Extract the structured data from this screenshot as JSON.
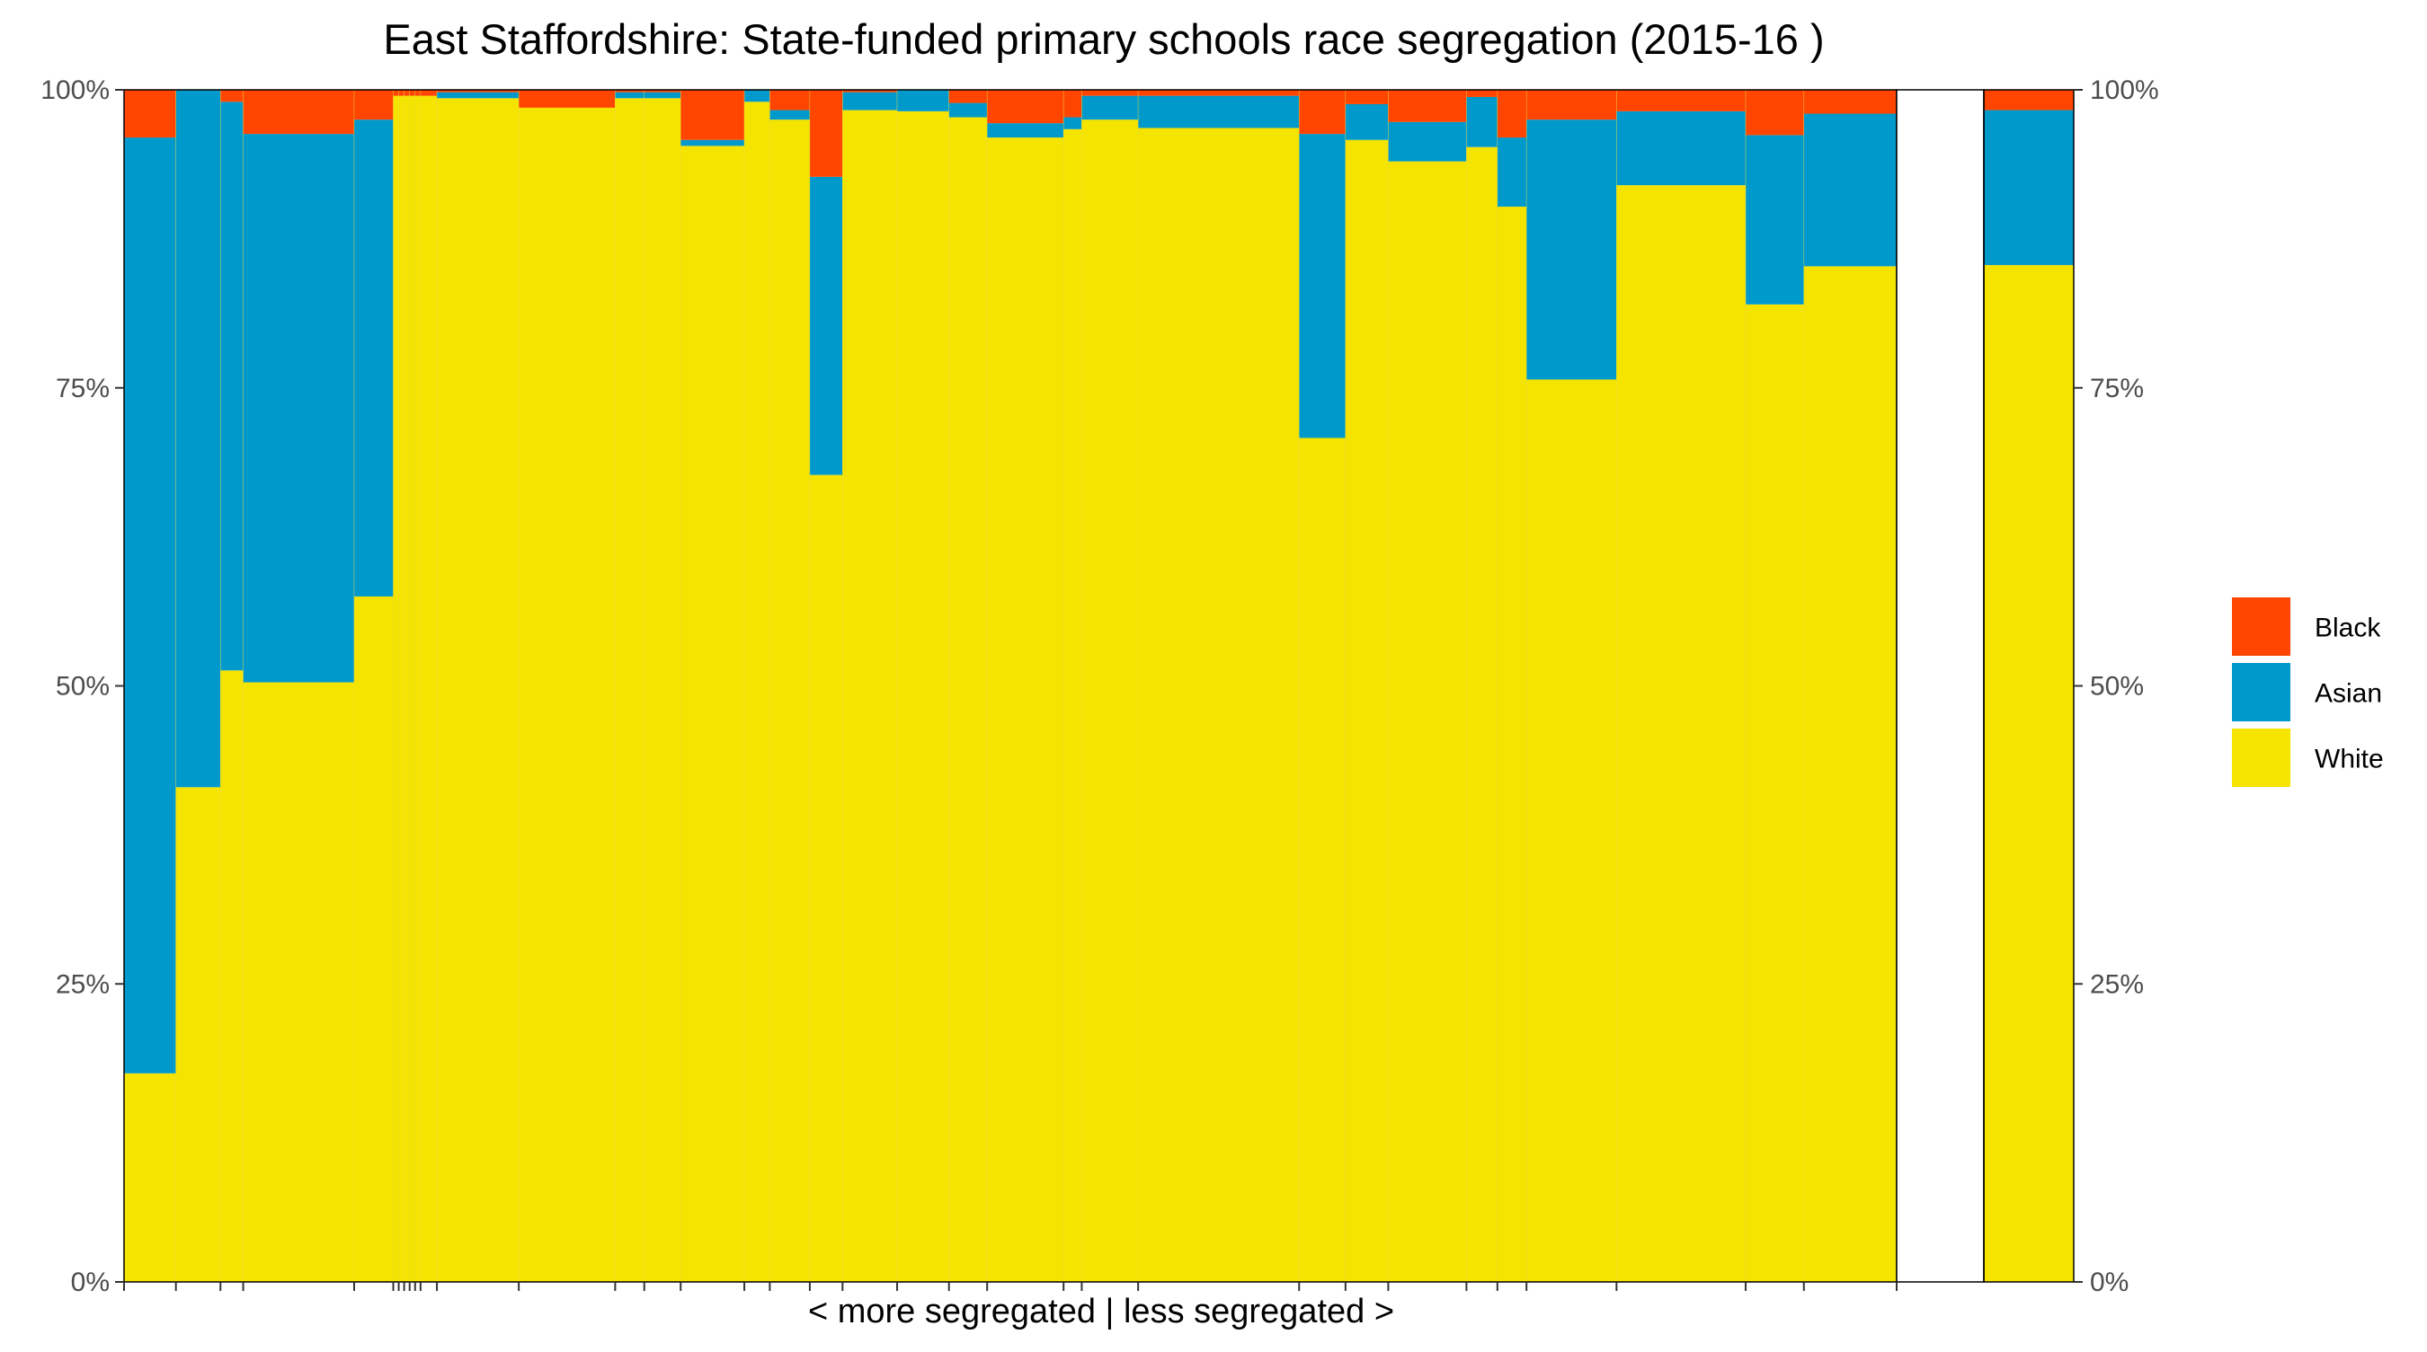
{
  "chart_data": {
    "type": "bar",
    "subtype": "stacked-100-variable-width",
    "title": "East Staffordshire: State-funded primary schools race segregation (2015-16 )",
    "xlabel": "< more segregated | less segregated >",
    "ylabel": "",
    "ylim": [
      0,
      1
    ],
    "y_ticks": [
      "0%",
      "25%",
      "50%",
      "75%",
      "100%"
    ],
    "y_axis_secondary": true,
    "legend_position": "right",
    "series_order_top_to_bottom": [
      "Black",
      "Asian",
      "White"
    ],
    "colors": {
      "White": "#f5e300",
      "Asian": "#0099cc",
      "Black": "#ff4500"
    },
    "legend": [
      {
        "name": "Black",
        "color": "#ff4500"
      },
      {
        "name": "Asian",
        "color": "#0099cc"
      },
      {
        "name": "White",
        "color": "#f5e300"
      }
    ],
    "schools": [
      {
        "width": 57,
        "white": 0.175,
        "asian": 0.785,
        "black": 0.04
      },
      {
        "width": 49,
        "white": 0.415,
        "asian": 0.585,
        "black": 0.0
      },
      {
        "width": 25,
        "white": 0.513,
        "asian": 0.477,
        "black": 0.01
      },
      {
        "width": 122,
        "white": 0.503,
        "asian": 0.46,
        "black": 0.037
      },
      {
        "width": 43,
        "white": 0.575,
        "asian": 0.4,
        "black": 0.025
      },
      {
        "width": 6,
        "white": 0.995,
        "asian": 0.0,
        "black": 0.0
      },
      {
        "width": 6,
        "white": 0.995,
        "asian": 0.0,
        "black": 0.0
      },
      {
        "width": 6,
        "white": 0.995,
        "asian": 0.0,
        "black": 0.0
      },
      {
        "width": 6,
        "white": 0.995,
        "asian": 0.0,
        "black": 0.0
      },
      {
        "width": 6,
        "white": 0.995,
        "asian": 0.0,
        "black": 0.0
      },
      {
        "width": 18,
        "white": 0.995,
        "asian": 0.0,
        "black": 0.0
      },
      {
        "width": 90,
        "white": 0.993,
        "asian": 0.005,
        "black": 0.0
      },
      {
        "width": 106,
        "white": 0.985,
        "asian": 0.0,
        "black": 0.015
      },
      {
        "width": 32,
        "white": 0.993,
        "asian": 0.005,
        "black": 0.0
      },
      {
        "width": 40,
        "white": 0.993,
        "asian": 0.005,
        "black": 0.0
      },
      {
        "width": 70,
        "white": 0.953,
        "asian": 0.005,
        "black": 0.042
      },
      {
        "width": 28,
        "white": 0.99,
        "asian": 0.01,
        "black": 0.0
      },
      {
        "width": 44,
        "white": 0.975,
        "asian": 0.008,
        "black": 0.017
      },
      {
        "width": 36,
        "white": 0.677,
        "asian": 0.25,
        "black": 0.073
      },
      {
        "width": 60,
        "white": 0.983,
        "asian": 0.015,
        "black": 0.0
      },
      {
        "width": 57,
        "white": 0.982,
        "asian": 0.018,
        "black": 0.0
      },
      {
        "width": 42,
        "white": 0.977,
        "asian": 0.012,
        "black": 0.011
      },
      {
        "width": 84,
        "white": 0.96,
        "asian": 0.012,
        "black": 0.028
      },
      {
        "width": 20,
        "white": 0.967,
        "asian": 0.01,
        "black": 0.013
      },
      {
        "width": 62,
        "white": 0.975,
        "asian": 0.02,
        "black": 0.005
      },
      {
        "width": 177,
        "white": 0.968,
        "asian": 0.027,
        "black": 0.005
      },
      {
        "width": 51,
        "white": 0.708,
        "asian": 0.255,
        "black": 0.037
      },
      {
        "width": 47,
        "white": 0.958,
        "asian": 0.03,
        "black": 0.012
      },
      {
        "width": 86,
        "white": 0.94,
        "asian": 0.033,
        "black": 0.027
      },
      {
        "width": 34,
        "white": 0.952,
        "asian": 0.042,
        "black": 0.006
      },
      {
        "width": 32,
        "white": 0.902,
        "asian": 0.058,
        "black": 0.04
      },
      {
        "width": 99,
        "white": 0.757,
        "asian": 0.218,
        "black": 0.025
      },
      {
        "width": 142,
        "white": 0.92,
        "asian": 0.062,
        "black": 0.018
      },
      {
        "width": 64,
        "white": 0.82,
        "asian": 0.142,
        "black": 0.038
      },
      {
        "width": 102,
        "white": 0.852,
        "asian": 0.128,
        "black": 0.02
      }
    ],
    "overall": {
      "width": 100,
      "white": 0.853,
      "asian": 0.13,
      "black": 0.017
    }
  }
}
